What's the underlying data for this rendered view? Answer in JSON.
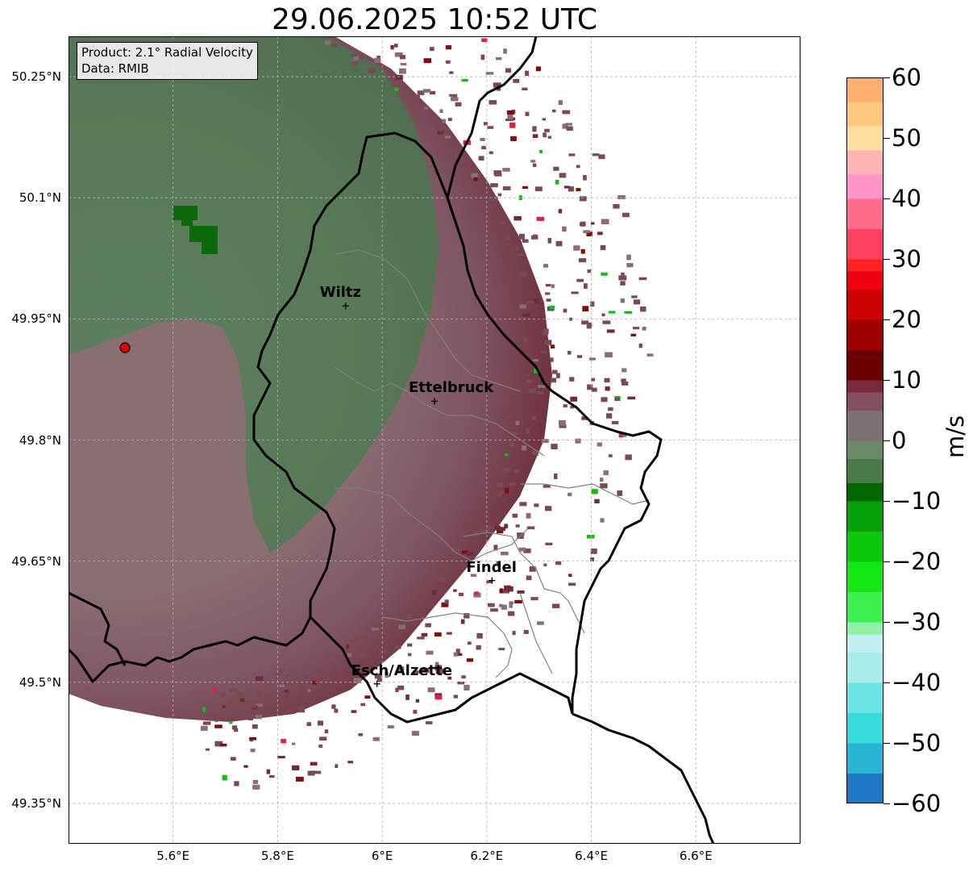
{
  "title": "29.06.2025 10:52 UTC",
  "info_box": {
    "product": "Product: 2.1° Radial Velocity",
    "data": "Data: RMIB"
  },
  "map": {
    "lon_range": [
      5.4,
      6.8
    ],
    "lat_range": [
      49.3,
      50.3
    ],
    "lat_ticks": [
      {
        "value": 49.35,
        "label": "49.35°N"
      },
      {
        "value": 49.5,
        "label": "49.5°N"
      },
      {
        "value": 49.65,
        "label": "49.65°N"
      },
      {
        "value": 49.8,
        "label": "49.8°N"
      },
      {
        "value": 49.95,
        "label": "49.95°N"
      },
      {
        "value": 50.1,
        "label": "50.1°N"
      },
      {
        "value": 50.25,
        "label": "50.25°N"
      }
    ],
    "lon_ticks": [
      {
        "value": 5.6,
        "label": "5.6°E"
      },
      {
        "value": 5.8,
        "label": "5.8°E"
      },
      {
        "value": 6.0,
        "label": "6°E"
      },
      {
        "value": 6.2,
        "label": "6.2°E"
      },
      {
        "value": 6.4,
        "label": "6.4°E"
      },
      {
        "value": 6.6,
        "label": "6.6°E"
      }
    ],
    "radar_site": {
      "lon": 5.505,
      "lat": 49.915
    },
    "cities": [
      {
        "name": "Wiltz",
        "lon": 5.93,
        "lat": 49.966
      },
      {
        "name": "Ettelbruck",
        "lon": 6.1,
        "lat": 49.848
      },
      {
        "name": "Findel",
        "lon": 6.21,
        "lat": 49.626
      },
      {
        "name": "Esch/Alzette",
        "lon": 5.99,
        "lat": 49.498
      }
    ],
    "colors": {
      "approaching": "#527a52",
      "receding": "#7a4a54",
      "border": "#000000",
      "canton": "#808080",
      "grid": "#b0b0b0"
    }
  },
  "colorbar": {
    "unit": "m/s",
    "min": -60,
    "max": 60,
    "ticks": [
      {
        "value": 60,
        "label": "60"
      },
      {
        "value": 50,
        "label": "50"
      },
      {
        "value": 40,
        "label": "40"
      },
      {
        "value": 30,
        "label": "30"
      },
      {
        "value": 20,
        "label": "20"
      },
      {
        "value": 10,
        "label": "10"
      },
      {
        "value": 0,
        "label": "0"
      },
      {
        "value": -10,
        "label": "−10"
      },
      {
        "value": -20,
        "label": "−20"
      },
      {
        "value": -30,
        "label": "−30"
      },
      {
        "value": -40,
        "label": "−40"
      },
      {
        "value": -50,
        "label": "−50"
      },
      {
        "value": -60,
        "label": "−60"
      }
    ],
    "stops": [
      {
        "value": -60,
        "color": "#1f77c4"
      },
      {
        "value": -55,
        "color": "#28b4d4"
      },
      {
        "value": -50,
        "color": "#36dcdc"
      },
      {
        "value": -45,
        "color": "#6ae4e4"
      },
      {
        "value": -40,
        "color": "#a8ecec"
      },
      {
        "value": -35,
        "color": "#c0f0f0"
      },
      {
        "value": -32,
        "color": "#90f0a8"
      },
      {
        "value": -30,
        "color": "#3cf050"
      },
      {
        "value": -25,
        "color": "#14e814"
      },
      {
        "value": -20,
        "color": "#0cc80c"
      },
      {
        "value": -15,
        "color": "#08a008"
      },
      {
        "value": -10,
        "color": "#006600"
      },
      {
        "value": -7,
        "color": "#4a7a4a"
      },
      {
        "value": -3,
        "color": "#6a8a6a"
      },
      {
        "value": 0,
        "color": "#7c7070"
      },
      {
        "value": 5,
        "color": "#845060"
      },
      {
        "value": 8,
        "color": "#7a2a3a"
      },
      {
        "value": 10,
        "color": "#6a0000"
      },
      {
        "value": 15,
        "color": "#a00000"
      },
      {
        "value": 20,
        "color": "#cc0000"
      },
      {
        "value": 25,
        "color": "#ee0010"
      },
      {
        "value": 28,
        "color": "#ff2020"
      },
      {
        "value": 30,
        "color": "#ff4060"
      },
      {
        "value": 35,
        "color": "#ff6c8c"
      },
      {
        "value": 40,
        "color": "#ff94c8"
      },
      {
        "value": 44,
        "color": "#ffb4b4"
      },
      {
        "value": 48,
        "color": "#ffe0a0"
      },
      {
        "value": 52,
        "color": "#ffc880"
      },
      {
        "value": 56,
        "color": "#ffb070"
      },
      {
        "value": 60,
        "color": "#ff9c54"
      }
    ]
  }
}
